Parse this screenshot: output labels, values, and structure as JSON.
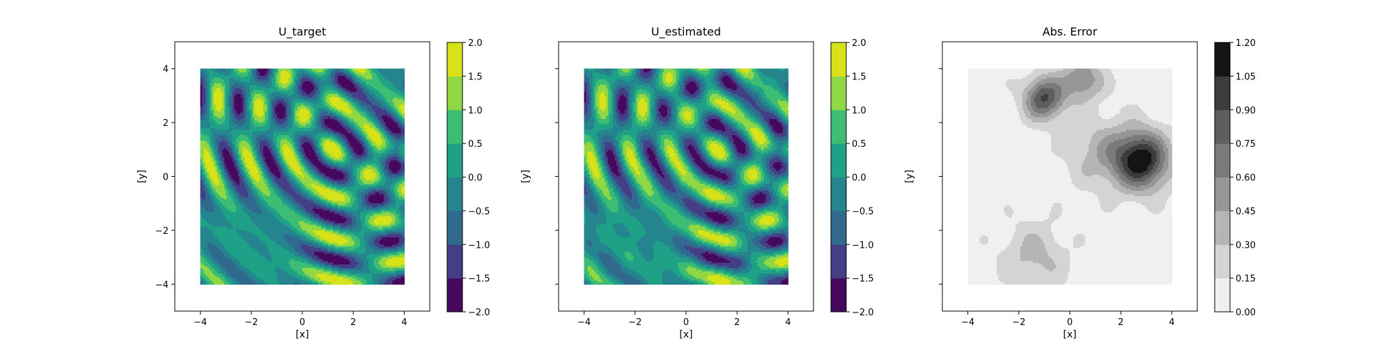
{
  "chart_data": [
    {
      "type": "heatmap",
      "title": "U_target",
      "xlabel": "[x]",
      "ylabel": "[y]",
      "xlim": [
        -5,
        5
      ],
      "ylim": [
        -5,
        5
      ],
      "data_extent": [
        -4,
        4,
        -4,
        4
      ],
      "x_ticks": [
        -4,
        -2,
        0,
        2,
        4
      ],
      "y_ticks": [
        -4,
        -2,
        0,
        2,
        4
      ],
      "x_tick_labels": [
        "−4",
        "−2",
        "0",
        "2",
        "4"
      ],
      "y_tick_labels": [
        "−4",
        "−2",
        "0",
        "2",
        "4"
      ],
      "show_y_tick_labels": true,
      "colormap": "viridis",
      "colorbar": {
        "levels": [
          -2.0,
          -1.5,
          -1.0,
          -0.5,
          0.0,
          0.5,
          1.0,
          1.5,
          2.0
        ],
        "tick_labels": [
          "−2.0",
          "−1.5",
          "−1.0",
          "−0.5",
          "0.0",
          "0.5",
          "1.0",
          "1.5",
          "2.0"
        ],
        "colors": [
          "#46085c",
          "#433e85",
          "#30688e",
          "#25858e",
          "#1fa187",
          "#3dbc74",
          "#8fd744",
          "#d8e219"
        ]
      },
      "field": "target"
    },
    {
      "type": "heatmap",
      "title": "U_estimated",
      "xlabel": "[x]",
      "ylabel": "[y]",
      "xlim": [
        -5,
        5
      ],
      "ylim": [
        -5,
        5
      ],
      "data_extent": [
        -4,
        4,
        -4,
        4
      ],
      "x_ticks": [
        -4,
        -2,
        0,
        2,
        4
      ],
      "y_ticks": [
        -4,
        -2,
        0,
        2,
        4
      ],
      "x_tick_labels": [
        "−4",
        "−2",
        "0",
        "2",
        "4"
      ],
      "y_tick_labels": [
        "−4",
        "−2",
        "0",
        "2",
        "4"
      ],
      "show_y_tick_labels": false,
      "colormap": "viridis",
      "colorbar": {
        "levels": [
          -2.0,
          -1.5,
          -1.0,
          -0.5,
          0.0,
          0.5,
          1.0,
          1.5,
          2.0
        ],
        "tick_labels": [
          "−2.0",
          "−1.5",
          "−1.0",
          "−0.5",
          "0.0",
          "0.5",
          "1.0",
          "1.5",
          "2.0"
        ],
        "colors": [
          "#46085c",
          "#433e85",
          "#30688e",
          "#25858e",
          "#1fa187",
          "#3dbc74",
          "#8fd744",
          "#d8e219"
        ]
      },
      "field": "estimated"
    },
    {
      "type": "heatmap",
      "title": "Abs. Error",
      "xlabel": "[x]",
      "ylabel": "[y]",
      "xlim": [
        -5,
        5
      ],
      "ylim": [
        -5,
        5
      ],
      "data_extent": [
        -4,
        4,
        -4,
        4
      ],
      "x_ticks": [
        -4,
        -2,
        0,
        2,
        4
      ],
      "y_ticks": [
        -4,
        -2,
        0,
        2,
        4
      ],
      "x_tick_labels": [
        "−4",
        "−2",
        "0",
        "2",
        "4"
      ],
      "y_tick_labels": [
        "−4",
        "−2",
        "0",
        "2",
        "4"
      ],
      "show_y_tick_labels": false,
      "colormap": "greys",
      "colorbar": {
        "levels": [
          0.0,
          0.15,
          0.3,
          0.45,
          0.6,
          0.75,
          0.9,
          1.05,
          1.2
        ],
        "tick_labels": [
          "0.00",
          "0.15",
          "0.30",
          "0.45",
          "0.60",
          "0.75",
          "0.90",
          "1.05",
          "1.20"
        ],
        "colors": [
          "#f0f0f0",
          "#d4d4d4",
          "#b5b5b5",
          "#969696",
          "#7a7a7a",
          "#5e5e5e",
          "#3c3c3c",
          "#141414"
        ]
      },
      "field": "error"
    }
  ]
}
